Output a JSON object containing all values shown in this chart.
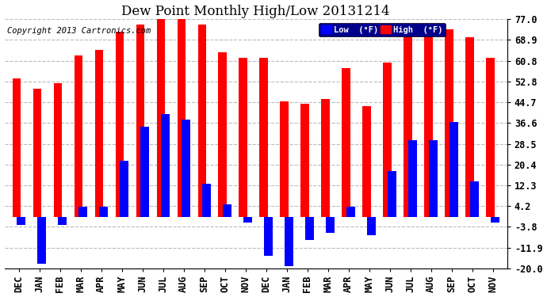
{
  "title": "Dew Point Monthly High/Low 20131214",
  "copyright": "Copyright 2013 Cartronics.com",
  "legend_low_label": "Low  (°F)",
  "legend_high_label": "High  (°F)",
  "months": [
    "DEC",
    "JAN",
    "FEB",
    "MAR",
    "APR",
    "MAY",
    "JUN",
    "JUL",
    "AUG",
    "SEP",
    "OCT",
    "NOV",
    "DEC",
    "JAN",
    "FEB",
    "MAR",
    "APR",
    "MAY",
    "JUN",
    "JUL",
    "AUG",
    "SEP",
    "OCT",
    "NOV"
  ],
  "high_values": [
    54,
    50,
    52,
    63,
    65,
    72,
    75,
    77,
    77,
    75,
    64,
    62,
    62,
    45,
    44,
    46,
    58,
    43,
    60,
    71,
    73,
    73,
    70,
    62
  ],
  "low_values": [
    -3,
    -18,
    -3,
    4,
    4,
    22,
    35,
    40,
    38,
    13,
    5,
    -2,
    -15,
    -19,
    -9,
    -6,
    4,
    -7,
    18,
    30,
    30,
    37,
    14,
    -2
  ],
  "ylim": [
    -20.0,
    77.0
  ],
  "yticks": [
    -20.0,
    -11.9,
    -3.8,
    4.2,
    12.3,
    20.4,
    28.5,
    36.6,
    44.7,
    52.8,
    60.8,
    68.9,
    77.0
  ],
  "ytick_labels": [
    "-20.0",
    "-11.9",
    "-3.8",
    "4.2",
    "12.3",
    "20.4",
    "28.5",
    "36.6",
    "44.7",
    "52.8",
    "60.8",
    "68.9",
    "77.0"
  ],
  "bg_color": "#ffffff",
  "plot_bg_color": "#ffffff",
  "bar_color_high": "#ff0000",
  "bar_color_low": "#0000ff",
  "grid_color": "#bbbbbb",
  "title_fontsize": 12,
  "copyright_fontsize": 7.5,
  "tick_fontsize": 8.5,
  "bar_width": 0.42
}
